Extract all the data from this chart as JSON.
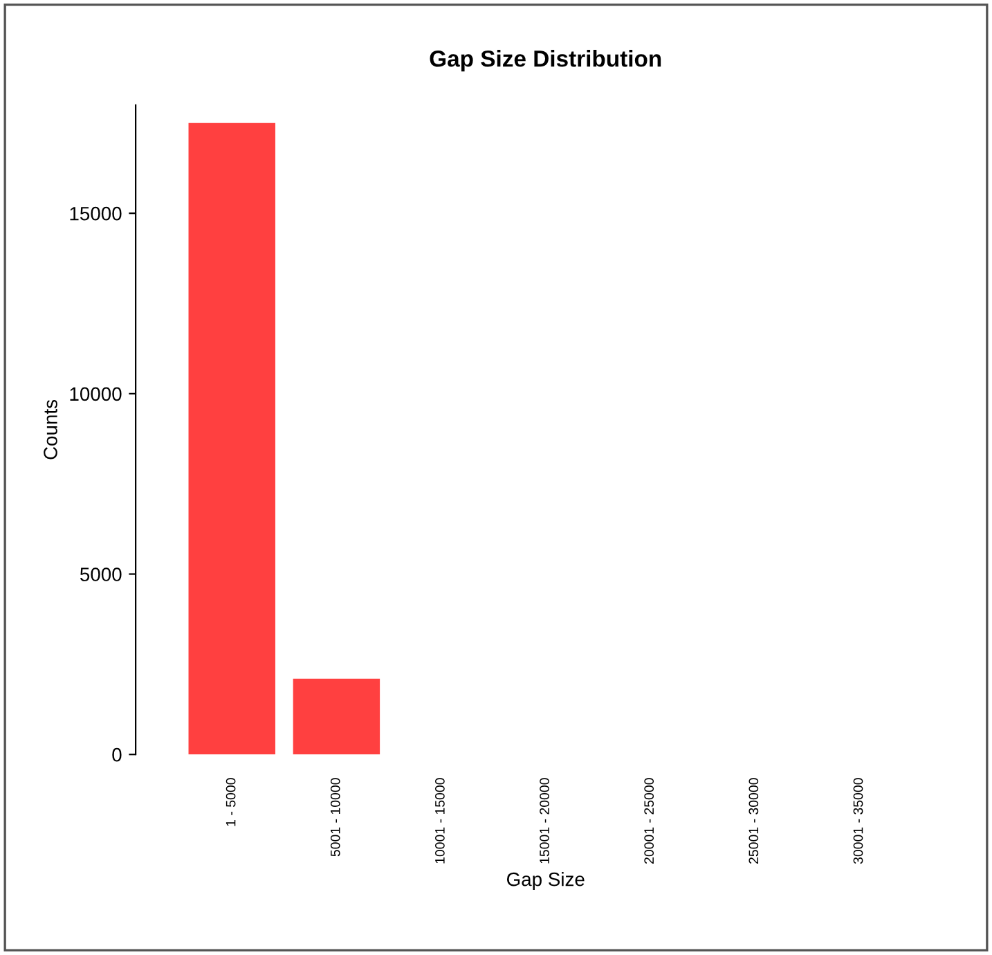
{
  "chart_data": {
    "type": "bar",
    "title": "Gap Size Distribution",
    "xlabel": "Gap Size",
    "ylabel": "Counts",
    "categories": [
      "1 - 5000",
      "5001 - 10000",
      "10001 - 15000",
      "15001 - 20000",
      "20001 - 25000",
      "25001 - 30000",
      "30001 - 35000"
    ],
    "values": [
      17500,
      2100,
      0,
      0,
      0,
      0,
      0
    ],
    "color": "#ff4040",
    "ylim": [
      0,
      18000
    ],
    "yticks": [
      0,
      5000,
      10000,
      15000
    ],
    "grid": false,
    "legend": false
  }
}
